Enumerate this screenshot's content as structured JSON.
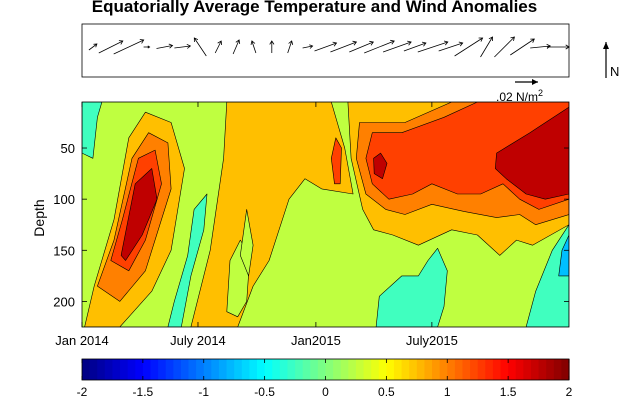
{
  "chart_data": [
    {
      "type": "quiver",
      "title": "Equatorially Average Temperature and Wind Anomalies",
      "scale_label": ".02 N/m",
      "scale_label_superscript": "2",
      "north_label": "N",
      "arrows": [
        {
          "u": 0.4,
          "v": 0.3
        },
        {
          "u": 1.2,
          "v": 0.6
        },
        {
          "u": 1.5,
          "v": 0.7
        },
        {
          "u": 0.3,
          "v": 0.0
        },
        {
          "u": 0.8,
          "v": 0.15
        },
        {
          "u": 0.8,
          "v": 0.1
        },
        {
          "u": -0.6,
          "v": 0.9
        },
        {
          "u": 0.3,
          "v": 0.6
        },
        {
          "u": 0.3,
          "v": 0.7
        },
        {
          "u": -0.2,
          "v": 0.6
        },
        {
          "u": 0.0,
          "v": 0.6
        },
        {
          "u": 0.2,
          "v": 0.6
        },
        {
          "u": 0.5,
          "v": 0.1
        },
        {
          "u": 1.1,
          "v": 0.4
        },
        {
          "u": 1.3,
          "v": 0.5
        },
        {
          "u": 1.2,
          "v": 0.5
        },
        {
          "u": 1.5,
          "v": 0.6
        },
        {
          "u": 1.4,
          "v": 0.5
        },
        {
          "u": 1.1,
          "v": 0.4
        },
        {
          "u": 1.5,
          "v": 0.5
        },
        {
          "u": 1.2,
          "v": 0.4
        },
        {
          "u": 1.4,
          "v": 0.9
        },
        {
          "u": 0.6,
          "v": 1.0
        },
        {
          "u": 1.0,
          "v": 1.0
        },
        {
          "u": 1.2,
          "v": 0.8
        },
        {
          "u": 1.0,
          "v": 0.1
        },
        {
          "u": 1.1,
          "v": 0.0
        }
      ]
    },
    {
      "type": "contour",
      "ylabel": "Depth",
      "xlabel": "",
      "ylim": [
        225,
        5
      ],
      "yticks": [
        50,
        100,
        150,
        200
      ],
      "xlim": [
        "2014-01-01",
        "2016-01-31"
      ],
      "xticks": [
        {
          "value": "2014-01-01",
          "label": "Jan 2014"
        },
        {
          "value": "2014-07-01",
          "label": "July 2014"
        },
        {
          "value": "2015-01-01",
          "label": "Jan2015"
        },
        {
          "value": "2015-07-01",
          "label": "July2015"
        }
      ],
      "levels": [
        -2,
        -1.5,
        -1,
        -0.5,
        0,
        0.5,
        1,
        1.5,
        2
      ],
      "colorbar": {
        "ticks": [
          -2,
          -1.5,
          -1,
          -0.5,
          0,
          0.5,
          1,
          1.5,
          2
        ],
        "tick_labels": [
          "-2",
          "-1.5",
          "-1",
          "-0.5",
          "0",
          "0.5",
          "1",
          "1.5",
          "2"
        ],
        "colormap": "jet"
      },
      "background_level": 0.25,
      "regions": [
        {
          "level": 0.75,
          "points": [
            [
              "2014-01-05",
              225
            ],
            [
              "2014-01-20",
              185
            ],
            [
              "2014-02-20",
              120
            ],
            [
              "2014-03-15",
              40
            ],
            [
              "2014-04-10",
              15
            ],
            [
              "2014-05-20",
              25
            ],
            [
              "2014-06-10",
              70
            ],
            [
              "2014-05-20",
              150
            ],
            [
              "2014-04-20",
              190
            ],
            [
              "2014-03-01",
              225
            ]
          ]
        },
        {
          "level": 1.0,
          "points": [
            [
              "2014-01-25",
              185
            ],
            [
              "2014-02-20",
              140
            ],
            [
              "2014-03-20",
              60
            ],
            [
              "2014-04-15",
              35
            ],
            [
              "2014-05-15",
              45
            ],
            [
              "2014-05-20",
              90
            ],
            [
              "2014-04-10",
              170
            ],
            [
              "2014-03-01",
              200
            ]
          ]
        },
        {
          "level": 1.25,
          "points": [
            [
              "2014-02-15",
              160
            ],
            [
              "2014-03-05",
              120
            ],
            [
              "2014-03-30",
              60
            ],
            [
              "2014-04-25",
              52
            ],
            [
              "2014-05-05",
              85
            ],
            [
              "2014-04-10",
              140
            ],
            [
              "2014-03-15",
              170
            ]
          ]
        },
        {
          "level": 1.75,
          "points": [
            [
              "2014-03-03",
              155
            ],
            [
              "2014-03-25",
              85
            ],
            [
              "2014-04-20",
              70
            ],
            [
              "2014-04-28",
              100
            ],
            [
              "2014-04-05",
              135
            ],
            [
              "2014-03-10",
              160
            ]
          ]
        },
        {
          "level": 0.75,
          "points": [
            [
              "2014-06-20",
              225
            ],
            [
              "2014-07-20",
              150
            ],
            [
              "2014-08-10",
              60
            ],
            [
              "2014-08-15",
              5
            ],
            [
              "2015-01-25",
              5
            ],
            [
              "2015-02-15",
              50
            ],
            [
              "2015-02-28",
              95
            ],
            [
              "2015-01-10",
              90
            ],
            [
              "2014-12-15",
              80
            ],
            [
              "2014-11-20",
              100
            ],
            [
              "2014-10-20",
              160
            ],
            [
              "2014-09-25",
              185
            ],
            [
              "2014-09-01",
              225
            ]
          ]
        },
        {
          "level": -0.25,
          "points": [
            [
              "2014-01-01",
              55
            ],
            [
              "2014-01-01",
              5
            ],
            [
              "2014-02-01",
              5
            ],
            [
              "2014-01-25",
              20
            ],
            [
              "2014-01-18",
              60
            ]
          ]
        },
        {
          "level": -0.25,
          "points": [
            [
              "2014-05-15",
              225
            ],
            [
              "2014-05-25",
              200
            ],
            [
              "2014-06-15",
              155
            ],
            [
              "2014-06-25",
              110
            ],
            [
              "2014-07-15",
              95
            ],
            [
              "2014-07-10",
              130
            ],
            [
              "2014-06-20",
              175
            ],
            [
              "2014-06-05",
              225
            ]
          ]
        },
        {
          "level": 0.25,
          "points": [
            [
              "2014-08-15",
              210
            ],
            [
              "2014-08-20",
              160
            ],
            [
              "2014-09-05",
              140
            ],
            [
              "2014-09-20",
              155
            ],
            [
              "2014-09-15",
              200
            ],
            [
              "2014-09-01",
              215
            ]
          ]
        },
        {
          "level": 0.25,
          "points": [
            [
              "2014-09-05",
              155
            ],
            [
              "2014-09-15",
              110
            ],
            [
              "2014-09-25",
              145
            ],
            [
              "2014-09-18",
              175
            ]
          ]
        },
        {
          "level": 1.25,
          "points": [
            [
              "2015-01-25",
              60
            ],
            [
              "2015-02-01",
              40
            ],
            [
              "2015-02-10",
              50
            ],
            [
              "2015-02-08",
              85
            ],
            [
              "2015-01-30",
              85
            ]
          ]
        },
        {
          "level": 0.75,
          "points": [
            [
              "2015-02-20",
              5
            ],
            [
              "2016-01-31",
              5
            ],
            [
              "2016-01-31",
              125
            ],
            [
              "2015-12-05",
              145
            ],
            [
              "2015-11-10",
              140
            ],
            [
              "2015-10-15",
              155
            ],
            [
              "2015-09-10",
              135
            ],
            [
              "2015-08-01",
              130
            ],
            [
              "2015-06-10",
              145
            ],
            [
              "2015-05-01",
              135
            ],
            [
              "2015-04-01",
              130
            ],
            [
              "2015-03-15",
              110
            ],
            [
              "2015-02-25",
              60
            ]
          ]
        },
        {
          "level": 1.0,
          "points": [
            [
              "2015-03-10",
              25
            ],
            [
              "2015-05-20",
              25
            ],
            [
              "2015-08-01",
              5
            ],
            [
              "2016-01-31",
              5
            ],
            [
              "2016-01-31",
              115
            ],
            [
              "2015-12-10",
              125
            ],
            [
              "2015-11-15",
              115
            ],
            [
              "2015-10-10",
              118
            ],
            [
              "2015-08-20",
              112
            ],
            [
              "2015-07-01",
              105
            ],
            [
              "2015-05-20",
              115
            ],
            [
              "2015-04-20",
              110
            ],
            [
              "2015-03-20",
              95
            ],
            [
              "2015-03-05",
              60
            ]
          ]
        },
        {
          "level": 1.25,
          "points": [
            [
              "2015-03-20",
              60
            ],
            [
              "2015-03-30",
              35
            ],
            [
              "2015-05-15",
              35
            ],
            [
              "2015-07-20",
              20
            ],
            [
              "2015-09-10",
              5
            ],
            [
              "2016-01-31",
              5
            ],
            [
              "2016-01-31",
              100
            ],
            [
              "2015-12-15",
              110
            ],
            [
              "2015-11-15",
              100
            ],
            [
              "2015-10-20",
              85
            ],
            [
              "2015-09-15",
              95
            ],
            [
              "2015-08-10",
              95
            ],
            [
              "2015-07-01",
              85
            ],
            [
              "2015-06-01",
              95
            ],
            [
              "2015-04-25",
              100
            ],
            [
              "2015-03-30",
              85
            ]
          ]
        },
        {
          "level": 1.75,
          "points": [
            [
              "2015-04-01",
              60
            ],
            [
              "2015-04-12",
              55
            ],
            [
              "2015-04-22",
              65
            ],
            [
              "2015-04-15",
              80
            ],
            [
              "2015-04-02",
              75
            ]
          ]
        },
        {
          "level": 1.75,
          "points": [
            [
              "2015-10-10",
              55
            ],
            [
              "2015-12-01",
              35
            ],
            [
              "2016-01-31",
              10
            ],
            [
              "2016-01-31",
              95
            ],
            [
              "2015-12-25",
              100
            ],
            [
              "2015-11-25",
              95
            ],
            [
              "2015-10-25",
              80
            ],
            [
              "2015-10-08",
              70
            ]
          ]
        },
        {
          "level": -0.25,
          "points": [
            [
              "2015-04-05",
              225
            ],
            [
              "2015-04-10",
              195
            ],
            [
              "2015-05-15",
              175
            ],
            [
              "2015-06-10",
              175
            ],
            [
              "2015-06-25",
              160
            ],
            [
              "2015-07-10",
              148
            ],
            [
              "2015-07-25",
              170
            ],
            [
              "2015-07-20",
              205
            ],
            [
              "2015-07-10",
              225
            ]
          ]
        },
        {
          "level": -0.25,
          "points": [
            [
              "2015-11-25",
              225
            ],
            [
              "2015-12-10",
              190
            ],
            [
              "2016-01-05",
              150
            ],
            [
              "2016-01-31",
              125
            ],
            [
              "2016-01-31",
              225
            ]
          ]
        },
        {
          "level": -0.75,
          "points": [
            [
              "2016-01-15",
              175
            ],
            [
              "2016-01-20",
              150
            ],
            [
              "2016-01-31",
              135
            ],
            [
              "2016-01-31",
              175
            ]
          ]
        }
      ]
    }
  ]
}
